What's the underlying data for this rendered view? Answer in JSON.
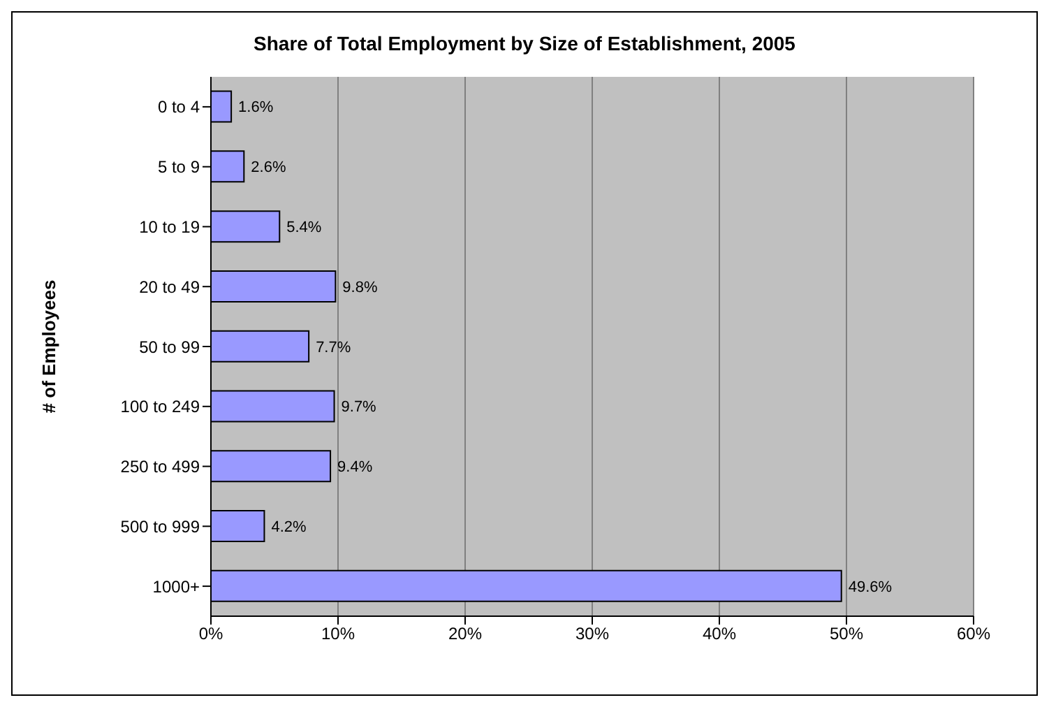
{
  "chart_data": {
    "type": "bar",
    "orientation": "horizontal",
    "title": "Share of Total Employment by Size of Establishment, 2005",
    "ylabel": "# of Employees",
    "categories": [
      "0 to 4",
      "5 to 9",
      "10 to 19",
      "20 to 49",
      "50 to 99",
      "100 to 249",
      "250 to 499",
      "500 to 999",
      "1000+"
    ],
    "values": [
      1.6,
      2.6,
      5.4,
      9.8,
      7.7,
      9.7,
      9.4,
      4.2,
      49.6
    ],
    "value_labels": [
      "1.6%",
      "2.6%",
      "5.4%",
      "9.8%",
      "7.7%",
      "9.7%",
      "9.4%",
      "4.2%",
      "49.6%"
    ],
    "color": "#9999ff",
    "xlim": [
      0,
      60
    ],
    "xticks": [
      {
        "value": 0,
        "label": "0%"
      },
      {
        "value": 10,
        "label": "10%"
      },
      {
        "value": 20,
        "label": "20%"
      },
      {
        "value": 30,
        "label": "30%"
      },
      {
        "value": 40,
        "label": "40%"
      },
      {
        "value": 50,
        "label": "50%"
      },
      {
        "value": 60,
        "label": "60%"
      }
    ],
    "grid": "x",
    "legend": false
  }
}
